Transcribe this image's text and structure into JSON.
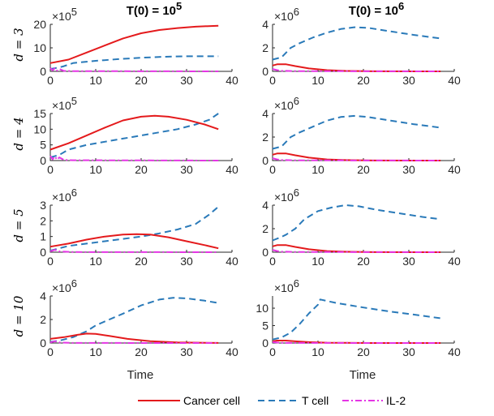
{
  "chart_data": {
    "type": "line",
    "columns": [
      {
        "title": "T(0) = 10",
        "title_exp": "5"
      },
      {
        "title": "T(0) = 10",
        "title_exp": "6"
      }
    ],
    "rows": [
      {
        "label": "d = 3"
      },
      {
        "label": "d = 4"
      },
      {
        "label": "d = 5"
      },
      {
        "label": "d = 10"
      }
    ],
    "xlabel": "Time",
    "xlim": [
      0,
      40
    ],
    "xticks": [
      0,
      10,
      20,
      30,
      40
    ],
    "legend": {
      "placement": "bottom",
      "entries": [
        {
          "name": "Cancer cell",
          "color": "#e41a1c",
          "dash": "solid"
        },
        {
          "name": "T cell",
          "color": "#2a7ab9",
          "dash": "dashed"
        },
        {
          "name": "IL-2",
          "color": "#e535e5",
          "dash": "dashdot"
        }
      ]
    },
    "panels": [
      {
        "row": 0,
        "col": 0,
        "ylim": [
          0,
          20
        ],
        "yticks": [
          0,
          10,
          20
        ],
        "exponent": "5",
        "series": {
          "cancer": [
            [
              0,
              3.5
            ],
            [
              4,
              5
            ],
            [
              8,
              8
            ],
            [
              12,
              11
            ],
            [
              16,
              14
            ],
            [
              20,
              16.2
            ],
            [
              24,
              17.6
            ],
            [
              28,
              18.4
            ],
            [
              32,
              19
            ],
            [
              37,
              19.4
            ]
          ],
          "tcell": [
            [
              0,
              1
            ],
            [
              2,
              1.7
            ],
            [
              3,
              2.2
            ],
            [
              5,
              3.5
            ],
            [
              10,
              4.5
            ],
            [
              15,
              5.2
            ],
            [
              20,
              5.8
            ],
            [
              25,
              6.2
            ],
            [
              30,
              6.4
            ],
            [
              37,
              6.4
            ]
          ],
          "il2": [
            [
              0,
              1.5
            ],
            [
              0.5,
              0.4
            ],
            [
              1,
              1.3
            ],
            [
              1.5,
              0.3
            ],
            [
              2,
              1
            ],
            [
              3,
              0.2
            ],
            [
              5,
              0.1
            ],
            [
              37,
              0
            ]
          ]
        }
      },
      {
        "row": 0,
        "col": 1,
        "ylim": [
          0,
          4
        ],
        "yticks": [
          0,
          2,
          4
        ],
        "exponent": "6",
        "series": {
          "cancer": [
            [
              0,
              0.5
            ],
            [
              1,
              0.6
            ],
            [
              3,
              0.6
            ],
            [
              5,
              0.45
            ],
            [
              8,
              0.25
            ],
            [
              12,
              0.1
            ],
            [
              16,
              0.04
            ],
            [
              22,
              0.01
            ],
            [
              37,
              0
            ]
          ],
          "tcell": [
            [
              0,
              1
            ],
            [
              2,
              1.2
            ],
            [
              3,
              1.6
            ],
            [
              4,
              2
            ],
            [
              6,
              2.4
            ],
            [
              9,
              2.9
            ],
            [
              12,
              3.3
            ],
            [
              15,
              3.6
            ],
            [
              18,
              3.75
            ],
            [
              21,
              3.7
            ],
            [
              26,
              3.4
            ],
            [
              31,
              3.1
            ],
            [
              37,
              2.8
            ]
          ],
          "il2": [
            [
              0,
              0.2
            ],
            [
              1,
              0.1
            ],
            [
              2,
              0.05
            ],
            [
              5,
              0.02
            ],
            [
              37,
              0
            ]
          ]
        }
      },
      {
        "row": 1,
        "col": 0,
        "ylim": [
          0,
          15
        ],
        "yticks": [
          0,
          5,
          10,
          15
        ],
        "exponent": "5",
        "series": {
          "cancer": [
            [
              0,
              3.5
            ],
            [
              4,
              5.5
            ],
            [
              8,
              8
            ],
            [
              12,
              10.5
            ],
            [
              16,
              12.8
            ],
            [
              20,
              14
            ],
            [
              23,
              14.3
            ],
            [
              26,
              14
            ],
            [
              30,
              13
            ],
            [
              34,
              11.5
            ],
            [
              37,
              10
            ]
          ],
          "tcell": [
            [
              0,
              1
            ],
            [
              2,
              1.8
            ],
            [
              4,
              3.5
            ],
            [
              8,
              5
            ],
            [
              12,
              6
            ],
            [
              16,
              7
            ],
            [
              20,
              8
            ],
            [
              24,
              9
            ],
            [
              28,
              10
            ],
            [
              32,
              11.5
            ],
            [
              35,
              13
            ],
            [
              37,
              15
            ]
          ],
          "il2": [
            [
              0,
              1.5
            ],
            [
              0.5,
              0.4
            ],
            [
              1,
              1.3
            ],
            [
              1.5,
              0.3
            ],
            [
              2,
              1
            ],
            [
              3,
              0.2
            ],
            [
              5,
              0.1
            ],
            [
              37,
              0
            ]
          ]
        }
      },
      {
        "row": 1,
        "col": 1,
        "ylim": [
          0,
          4
        ],
        "yticks": [
          0,
          2,
          4
        ],
        "exponent": "6",
        "series": {
          "cancer": [
            [
              0,
              0.5
            ],
            [
              1,
              0.6
            ],
            [
              3,
              0.6
            ],
            [
              5,
              0.45
            ],
            [
              8,
              0.25
            ],
            [
              12,
              0.1
            ],
            [
              16,
              0.04
            ],
            [
              22,
              0.01
            ],
            [
              37,
              0
            ]
          ],
          "tcell": [
            [
              0,
              1
            ],
            [
              2,
              1.2
            ],
            [
              3,
              1.6
            ],
            [
              4,
              2
            ],
            [
              6,
              2.4
            ],
            [
              9,
              2.9
            ],
            [
              12,
              3.4
            ],
            [
              15,
              3.7
            ],
            [
              18,
              3.8
            ],
            [
              21,
              3.7
            ],
            [
              26,
              3.4
            ],
            [
              31,
              3.1
            ],
            [
              37,
              2.8
            ]
          ],
          "il2": [
            [
              0,
              0.2
            ],
            [
              1,
              0.1
            ],
            [
              2,
              0.05
            ],
            [
              5,
              0.02
            ],
            [
              37,
              0
            ]
          ]
        }
      },
      {
        "row": 2,
        "col": 0,
        "ylim": [
          0,
          3
        ],
        "yticks": [
          0,
          1,
          2,
          3
        ],
        "exponent": "6",
        "series": {
          "cancer": [
            [
              0,
              0.35
            ],
            [
              4,
              0.55
            ],
            [
              8,
              0.8
            ],
            [
              12,
              1
            ],
            [
              16,
              1.12
            ],
            [
              19,
              1.15
            ],
            [
              22,
              1.12
            ],
            [
              26,
              0.95
            ],
            [
              30,
              0.7
            ],
            [
              34,
              0.45
            ],
            [
              37,
              0.25
            ]
          ],
          "tcell": [
            [
              0,
              0.1
            ],
            [
              2,
              0.25
            ],
            [
              4,
              0.4
            ],
            [
              8,
              0.55
            ],
            [
              12,
              0.7
            ],
            [
              16,
              0.85
            ],
            [
              20,
              1
            ],
            [
              24,
              1.2
            ],
            [
              28,
              1.45
            ],
            [
              32,
              1.8
            ],
            [
              35,
              2.4
            ],
            [
              37,
              2.9
            ]
          ],
          "il2": [
            [
              0,
              0.05
            ],
            [
              1,
              0.15
            ],
            [
              2,
              0.05
            ],
            [
              5,
              0.01
            ],
            [
              37,
              0
            ]
          ]
        }
      },
      {
        "row": 2,
        "col": 1,
        "ylim": [
          0,
          4
        ],
        "yticks": [
          0,
          2,
          4
        ],
        "exponent": "6",
        "series": {
          "cancer": [
            [
              0,
              0.5
            ],
            [
              1,
              0.6
            ],
            [
              3,
              0.6
            ],
            [
              5,
              0.45
            ],
            [
              8,
              0.25
            ],
            [
              12,
              0.1
            ],
            [
              16,
              0.04
            ],
            [
              22,
              0.01
            ],
            [
              37,
              0
            ]
          ],
          "tcell": [
            [
              0,
              1
            ],
            [
              2,
              1.3
            ],
            [
              3,
              1.5
            ],
            [
              5,
              2
            ],
            [
              7,
              2.8
            ],
            [
              10,
              3.5
            ],
            [
              13,
              3.8
            ],
            [
              16,
              4
            ],
            [
              19,
              3.9
            ],
            [
              23,
              3.6
            ],
            [
              28,
              3.3
            ],
            [
              33,
              3
            ],
            [
              37,
              2.8
            ]
          ],
          "il2": [
            [
              0,
              0.2
            ],
            [
              1,
              0.1
            ],
            [
              2,
              0.05
            ],
            [
              5,
              0.02
            ],
            [
              37,
              0
            ]
          ]
        }
      },
      {
        "row": 3,
        "col": 0,
        "ylim": [
          0,
          4
        ],
        "yticks": [
          0,
          2,
          4
        ],
        "exponent": "6",
        "series": {
          "cancer": [
            [
              0,
              0.35
            ],
            [
              3,
              0.5
            ],
            [
              6,
              0.7
            ],
            [
              8,
              0.8
            ],
            [
              10,
              0.78
            ],
            [
              13,
              0.6
            ],
            [
              17,
              0.35
            ],
            [
              22,
              0.15
            ],
            [
              28,
              0.05
            ],
            [
              37,
              0.01
            ]
          ],
          "tcell": [
            [
              0,
              0.1
            ],
            [
              2,
              0.2
            ],
            [
              5,
              0.5
            ],
            [
              8,
              1
            ],
            [
              10,
              1.5
            ],
            [
              13,
              2
            ],
            [
              16,
              2.5
            ],
            [
              20,
              3.2
            ],
            [
              24,
              3.7
            ],
            [
              27,
              3.85
            ],
            [
              30,
              3.8
            ],
            [
              34,
              3.6
            ],
            [
              37,
              3.4
            ]
          ],
          "il2": [
            [
              0,
              0.05
            ],
            [
              1,
              0.15
            ],
            [
              2,
              0.05
            ],
            [
              5,
              0.01
            ],
            [
              37,
              0
            ]
          ]
        }
      },
      {
        "row": 3,
        "col": 1,
        "ylim": [
          0,
          13.5
        ],
        "yticks": [
          0,
          5,
          10
        ],
        "exponent": "6",
        "series": {
          "cancer": [
            [
              0,
              0.5
            ],
            [
              1,
              0.7
            ],
            [
              3,
              0.7
            ],
            [
              5,
              0.5
            ],
            [
              8,
              0.25
            ],
            [
              12,
              0.1
            ],
            [
              16,
              0.04
            ],
            [
              22,
              0.01
            ],
            [
              37,
              0
            ]
          ],
          "tcell": [
            [
              0,
              1
            ],
            [
              2,
              1.6
            ],
            [
              4,
              3
            ],
            [
              6,
              5.5
            ],
            [
              8,
              8.5
            ],
            [
              10,
              11
            ],
            [
              10.5,
              12.5
            ],
            [
              14,
              11.5
            ],
            [
              20,
              10.2
            ],
            [
              26,
              9
            ],
            [
              32,
              8
            ],
            [
              37,
              7.1
            ]
          ],
          "il2": [
            [
              0,
              0.3
            ],
            [
              1,
              0.15
            ],
            [
              2,
              0.05
            ],
            [
              5,
              0.02
            ],
            [
              37,
              0
            ]
          ]
        }
      }
    ]
  }
}
